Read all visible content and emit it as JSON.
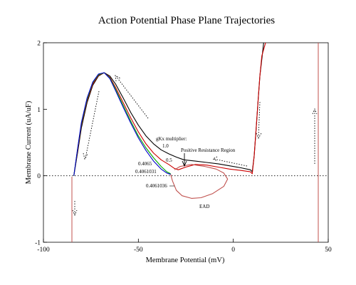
{
  "chart_data": {
    "type": "line",
    "title": "Action Potential Phase Plane Trajectories",
    "xlabel": "Membrane Potential (mV)",
    "ylabel": "Membrane Current (uA/uF)",
    "xlim": [
      -100,
      50
    ],
    "ylim": [
      -1,
      2
    ],
    "xticks": [
      -100,
      -50,
      0,
      50
    ],
    "yticks": [
      -1,
      0,
      1,
      2
    ],
    "grid": false,
    "reference_line_y": 0,
    "series": [
      {
        "color": "#000000",
        "points": [
          [
            -84,
            0
          ],
          [
            -82,
            0.35
          ],
          [
            -80,
            0.72
          ],
          [
            -77,
            1.1
          ],
          [
            -74,
            1.36
          ],
          [
            -71,
            1.5
          ],
          [
            -68,
            1.55
          ],
          [
            -65,
            1.5
          ],
          [
            -62,
            1.38
          ],
          [
            -58,
            1.17
          ],
          [
            -54,
            0.95
          ],
          [
            -50,
            0.76
          ],
          [
            -46,
            0.6
          ],
          [
            -42,
            0.48
          ],
          [
            -38,
            0.39
          ],
          [
            -34,
            0.33
          ],
          [
            -30,
            0.28
          ],
          [
            -26,
            0.24
          ],
          [
            -20,
            0.22
          ],
          [
            -14,
            0.2
          ],
          [
            -8,
            0.18
          ],
          [
            -2,
            0.15
          ],
          [
            4,
            0.12
          ],
          [
            9,
            0.09
          ],
          [
            10,
            0.06
          ],
          [
            11,
            0.3
          ],
          [
            12,
            0.7
          ],
          [
            13,
            1.1
          ],
          [
            14,
            1.5
          ],
          [
            15,
            1.75
          ],
          [
            16,
            2.0
          ]
        ]
      },
      {
        "color": "#cc0000",
        "points": [
          [
            -84,
            0
          ],
          [
            -82,
            0.38
          ],
          [
            -80,
            0.76
          ],
          [
            -77,
            1.13
          ],
          [
            -74,
            1.38
          ],
          [
            -71,
            1.51
          ],
          [
            -68,
            1.55
          ],
          [
            -65,
            1.48
          ],
          [
            -62,
            1.33
          ],
          [
            -58,
            1.1
          ],
          [
            -54,
            0.87
          ],
          [
            -50,
            0.66
          ],
          [
            -46,
            0.48
          ],
          [
            -42,
            0.34
          ],
          [
            -38,
            0.24
          ],
          [
            -34,
            0.17
          ],
          [
            -31,
            0.11
          ],
          [
            -29,
            0.09
          ],
          [
            -25,
            0.13
          ],
          [
            -20,
            0.17
          ],
          [
            -14,
            0.16
          ],
          [
            -8,
            0.13
          ],
          [
            -2,
            0.1
          ],
          [
            4,
            0.08
          ],
          [
            9,
            0.06
          ],
          [
            10,
            0.03
          ],
          [
            11,
            0.3
          ],
          [
            12,
            0.7
          ],
          [
            13,
            1.1
          ],
          [
            14,
            1.5
          ],
          [
            15,
            1.8
          ],
          [
            17,
            2.0
          ]
        ]
      },
      {
        "color": "#00aa00",
        "points": [
          [
            -84,
            0
          ],
          [
            -82,
            0.4
          ],
          [
            -80,
            0.78
          ],
          [
            -77,
            1.15
          ],
          [
            -74,
            1.4
          ],
          [
            -71,
            1.52
          ],
          [
            -68,
            1.55
          ],
          [
            -65,
            1.47
          ],
          [
            -62,
            1.3
          ],
          [
            -58,
            1.06
          ],
          [
            -54,
            0.82
          ],
          [
            -50,
            0.6
          ],
          [
            -46,
            0.42
          ],
          [
            -42,
            0.27
          ],
          [
            -38,
            0.14
          ],
          [
            -35,
            0.06
          ],
          [
            -33,
            0.03
          ]
        ]
      },
      {
        "color": "#0000cc",
        "points": [
          [
            -84,
            0
          ],
          [
            -82,
            0.41
          ],
          [
            -80,
            0.8
          ],
          [
            -77,
            1.17
          ],
          [
            -74,
            1.41
          ],
          [
            -71,
            1.53
          ],
          [
            -68,
            1.55
          ],
          [
            -65,
            1.46
          ],
          [
            -62,
            1.28
          ],
          [
            -58,
            1.03
          ],
          [
            -54,
            0.79
          ],
          [
            -50,
            0.57
          ],
          [
            -46,
            0.38
          ],
          [
            -42,
            0.22
          ],
          [
            -38,
            0.1
          ],
          [
            -35,
            0.04
          ],
          [
            -33,
            0.02
          ]
        ]
      },
      {
        "color": "#c0504d",
        "points": [
          [
            -33,
            0.02
          ],
          [
            -32,
            -0.08
          ],
          [
            -30,
            -0.22
          ],
          [
            -27,
            -0.3
          ],
          [
            -22,
            -0.34
          ],
          [
            -17,
            -0.33
          ],
          [
            -11,
            -0.27
          ],
          [
            -5,
            -0.16
          ],
          [
            -3,
            -0.05
          ],
          [
            -5,
            0.04
          ],
          [
            -9,
            0.1
          ],
          [
            -15,
            0.14
          ],
          [
            -22,
            0.17
          ],
          [
            -28,
            0.14
          ],
          [
            -31,
            0.09
          ]
        ]
      }
    ],
    "annotations": {
      "legend_title": "gKx multiplier:",
      "multipliers": [
        "1.0",
        "0.5",
        "0.4065",
        "0.4061031",
        "0.4061036"
      ],
      "region_label": "Positive Resistance Region",
      "ead_label": "EAD"
    }
  }
}
